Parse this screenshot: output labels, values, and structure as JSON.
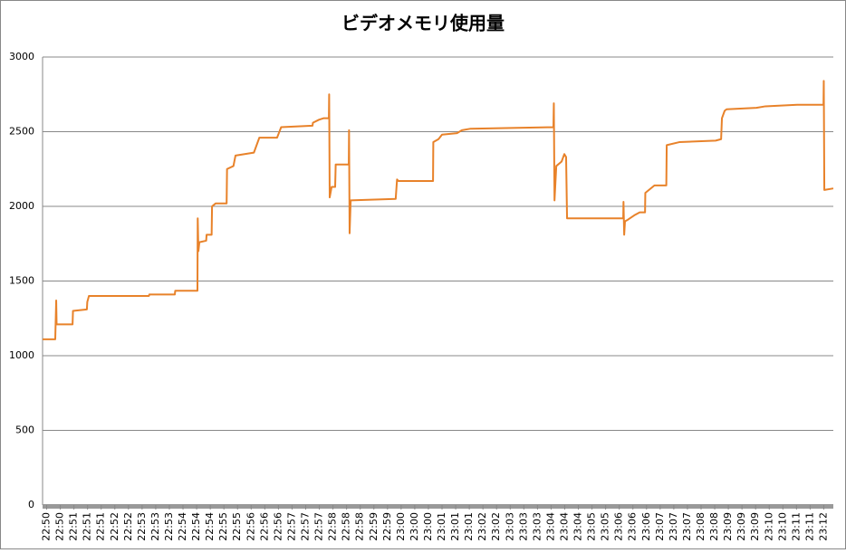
{
  "chart_data": {
    "type": "line",
    "title": "ビデオメモリ使用量",
    "color": "#e8822a",
    "grid": true,
    "ylim": [
      0,
      3000
    ],
    "yticks": [
      0,
      500,
      1000,
      1500,
      2000,
      2500,
      3000
    ],
    "xlim": [
      0,
      580
    ],
    "xticks": [
      {
        "value": 3,
        "label": "22:50"
      },
      {
        "value": 13,
        "label": "22:50"
      },
      {
        "value": 23,
        "label": "22:51"
      },
      {
        "value": 33,
        "label": "22:51"
      },
      {
        "value": 43,
        "label": "22:51"
      },
      {
        "value": 53,
        "label": "22:52"
      },
      {
        "value": 63,
        "label": "22:52"
      },
      {
        "value": 73,
        "label": "22:53"
      },
      {
        "value": 83,
        "label": "22:53"
      },
      {
        "value": 93,
        "label": "22:53"
      },
      {
        "value": 103,
        "label": "22:54"
      },
      {
        "value": 113,
        "label": "22:54"
      },
      {
        "value": 123,
        "label": "22:54"
      },
      {
        "value": 133,
        "label": "22:55"
      },
      {
        "value": 143,
        "label": "22:55"
      },
      {
        "value": 153,
        "label": "22:56"
      },
      {
        "value": 163,
        "label": "22:56"
      },
      {
        "value": 173,
        "label": "22:56"
      },
      {
        "value": 183,
        "label": "22:57"
      },
      {
        "value": 193,
        "label": "22:57"
      },
      {
        "value": 203,
        "label": "22:57"
      },
      {
        "value": 213,
        "label": "22:58"
      },
      {
        "value": 223,
        "label": "22:58"
      },
      {
        "value": 233,
        "label": "22:58"
      },
      {
        "value": 243,
        "label": "22:59"
      },
      {
        "value": 253,
        "label": "22:59"
      },
      {
        "value": 263,
        "label": "23:00"
      },
      {
        "value": 273,
        "label": "23:00"
      },
      {
        "value": 283,
        "label": "23:00"
      },
      {
        "value": 293,
        "label": "23:01"
      },
      {
        "value": 303,
        "label": "23:01"
      },
      {
        "value": 313,
        "label": "23:01"
      },
      {
        "value": 323,
        "label": "23:02"
      },
      {
        "value": 333,
        "label": "23:02"
      },
      {
        "value": 343,
        "label": "23:03"
      },
      {
        "value": 353,
        "label": "23:03"
      },
      {
        "value": 363,
        "label": "23:03"
      },
      {
        "value": 373,
        "label": "23:04"
      },
      {
        "value": 383,
        "label": "23:04"
      },
      {
        "value": 393,
        "label": "23:04"
      },
      {
        "value": 403,
        "label": "23:05"
      },
      {
        "value": 413,
        "label": "23:05"
      },
      {
        "value": 423,
        "label": "23:06"
      },
      {
        "value": 433,
        "label": "23:06"
      },
      {
        "value": 443,
        "label": "23:06"
      },
      {
        "value": 453,
        "label": "23:07"
      },
      {
        "value": 463,
        "label": "23:07"
      },
      {
        "value": 473,
        "label": "23:07"
      },
      {
        "value": 483,
        "label": "23:08"
      },
      {
        "value": 493,
        "label": "23:08"
      },
      {
        "value": 503,
        "label": "23:09"
      },
      {
        "value": 513,
        "label": "23:09"
      },
      {
        "value": 523,
        "label": "23:09"
      },
      {
        "value": 533,
        "label": "23:10"
      },
      {
        "value": 543,
        "label": "23:10"
      },
      {
        "value": 553,
        "label": "23:11"
      },
      {
        "value": 563,
        "label": "23:11"
      },
      {
        "value": 573,
        "label": "23:12"
      }
    ],
    "x": [
      0,
      9.3,
      10,
      10.3,
      22,
      22.3,
      32.5,
      32.8,
      34,
      78,
      78.3,
      97,
      97.3,
      113.6,
      113.8,
      114.3,
      115,
      120,
      120.3,
      124,
      124.3,
      127,
      135,
      135.3,
      140,
      141.5,
      155,
      157,
      159,
      172,
      175,
      198,
      198.3,
      202.7,
      206,
      210,
      210.2,
      210.6,
      212,
      214.6,
      215,
      224.6,
      224.8,
      225.2,
      226,
      259,
      260,
      261,
      286.4,
      286.6,
      290.4,
      293,
      304,
      307.6,
      314,
      344,
      374.7,
      375,
      375.5,
      376.8,
      380.7,
      382.7,
      384,
      384.7,
      425.9,
      426.1,
      426.6,
      427.2,
      429.2,
      434,
      438,
      441.9,
      442.1,
      448.8,
      457.5,
      457.8,
      467,
      493.7,
      497.7,
      498.3,
      500.3,
      501.7,
      523.6,
      530.2,
      553.5,
      572.8,
      573,
      573.4,
      580
    ],
    "values": [
      1110,
      1110,
      1370,
      1210,
      1210,
      1300,
      1310,
      1360,
      1400,
      1400,
      1410,
      1410,
      1435,
      1435,
      1920,
      1700,
      1760,
      1770,
      1810,
      1810,
      2000,
      2020,
      2020,
      2250,
      2270,
      2340,
      2360,
      2410,
      2460,
      2460,
      2530,
      2540,
      2560,
      2580,
      2590,
      2590,
      2750,
      2060,
      2130,
      2130,
      2280,
      2280,
      2510,
      1820,
      2040,
      2050,
      2180,
      2170,
      2170,
      2430,
      2450,
      2480,
      2490,
      2510,
      2520,
      2525,
      2530,
      2690,
      2040,
      2270,
      2300,
      2350,
      2330,
      1920,
      1920,
      2030,
      1810,
      1900,
      1910,
      1940,
      1960,
      1960,
      2090,
      2140,
      2140,
      2410,
      2430,
      2440,
      2450,
      2590,
      2640,
      2650,
      2660,
      2670,
      2680,
      2680,
      2840,
      2110,
      2120
    ]
  }
}
